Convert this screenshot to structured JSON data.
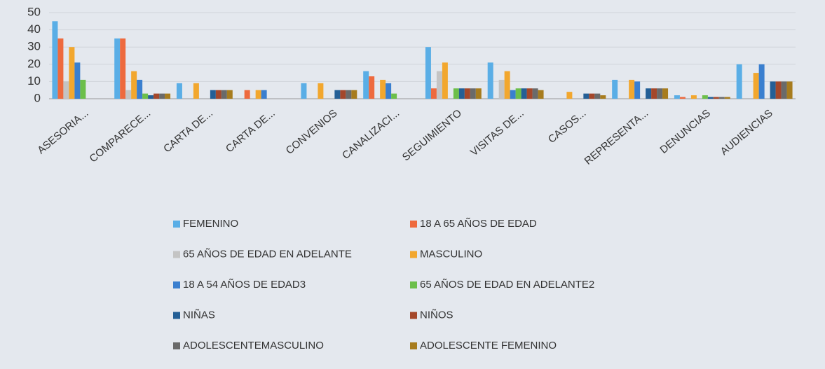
{
  "chart_data": {
    "type": "bar",
    "categories": [
      "ASESORIA...",
      "COMPARECE...",
      "CARTA DE...",
      "CARTA DE...",
      "CONVENIOS",
      "CANALIZACI...",
      "SEGUIMIENTO",
      "VISITAS DE...",
      "CASOS...",
      "REPRESENTA...",
      "DENUNCIAS",
      "AUDIENCIAS"
    ],
    "series": [
      {
        "name": "FEMENINO",
        "color": "#5aaee6",
        "values": [
          45,
          35,
          9,
          0,
          9,
          16,
          30,
          21,
          0,
          11,
          2,
          20
        ]
      },
      {
        "name": "18 A 65 AÑOS DE EDAD",
        "color": "#ee6a3e",
        "values": [
          35,
          35,
          0,
          5,
          0,
          13,
          6,
          0,
          0,
          0,
          1,
          0
        ]
      },
      {
        "name": "65 AÑOS DE EDAD EN ADELANTE",
        "color": "#c4c4c4",
        "values": [
          10,
          5,
          0,
          0,
          0,
          0,
          16,
          11,
          0,
          0,
          0,
          0
        ]
      },
      {
        "name": "MASCULINO",
        "color": "#f2a72e",
        "values": [
          30,
          16,
          9,
          5,
          9,
          11,
          21,
          16,
          4,
          11,
          2,
          15
        ]
      },
      {
        "name": "18 A 54 AÑOS DE EDAD3",
        "color": "#3a7fcf",
        "values": [
          21,
          11,
          0,
          5,
          0,
          9,
          0,
          5,
          0,
          10,
          0,
          20
        ]
      },
      {
        "name": "65 AÑOS DE EDAD EN ADELANTE2",
        "color": "#6cbf4a",
        "values": [
          11,
          3,
          0,
          0,
          0,
          3,
          6,
          6,
          0,
          0,
          2,
          0
        ]
      },
      {
        "name": "NIÑAS",
        "color": "#245f96",
        "values": [
          0,
          2,
          5,
          0,
          5,
          0,
          6,
          6,
          3,
          6,
          1,
          10
        ]
      },
      {
        "name": "NIÑOS",
        "color": "#a4472a",
        "values": [
          0,
          3,
          5,
          0,
          5,
          0,
          6,
          6,
          3,
          6,
          1,
          10
        ]
      },
      {
        "name": "ADOLESCENTEMASCULINO",
        "color": "#6a6a6a",
        "values": [
          0,
          3,
          5,
          0,
          5,
          0,
          6,
          6,
          3,
          6,
          1,
          10
        ]
      },
      {
        "name": "ADOLESCENTE FEMENINO",
        "color": "#a77c1e",
        "values": [
          0,
          3,
          5,
          0,
          5,
          0,
          6,
          5,
          2,
          6,
          1,
          10
        ]
      }
    ],
    "ylim": [
      0,
      50
    ],
    "yticks": [
      0,
      10,
      20,
      30,
      40,
      50
    ],
    "grid": true,
    "legend": "bottom"
  }
}
